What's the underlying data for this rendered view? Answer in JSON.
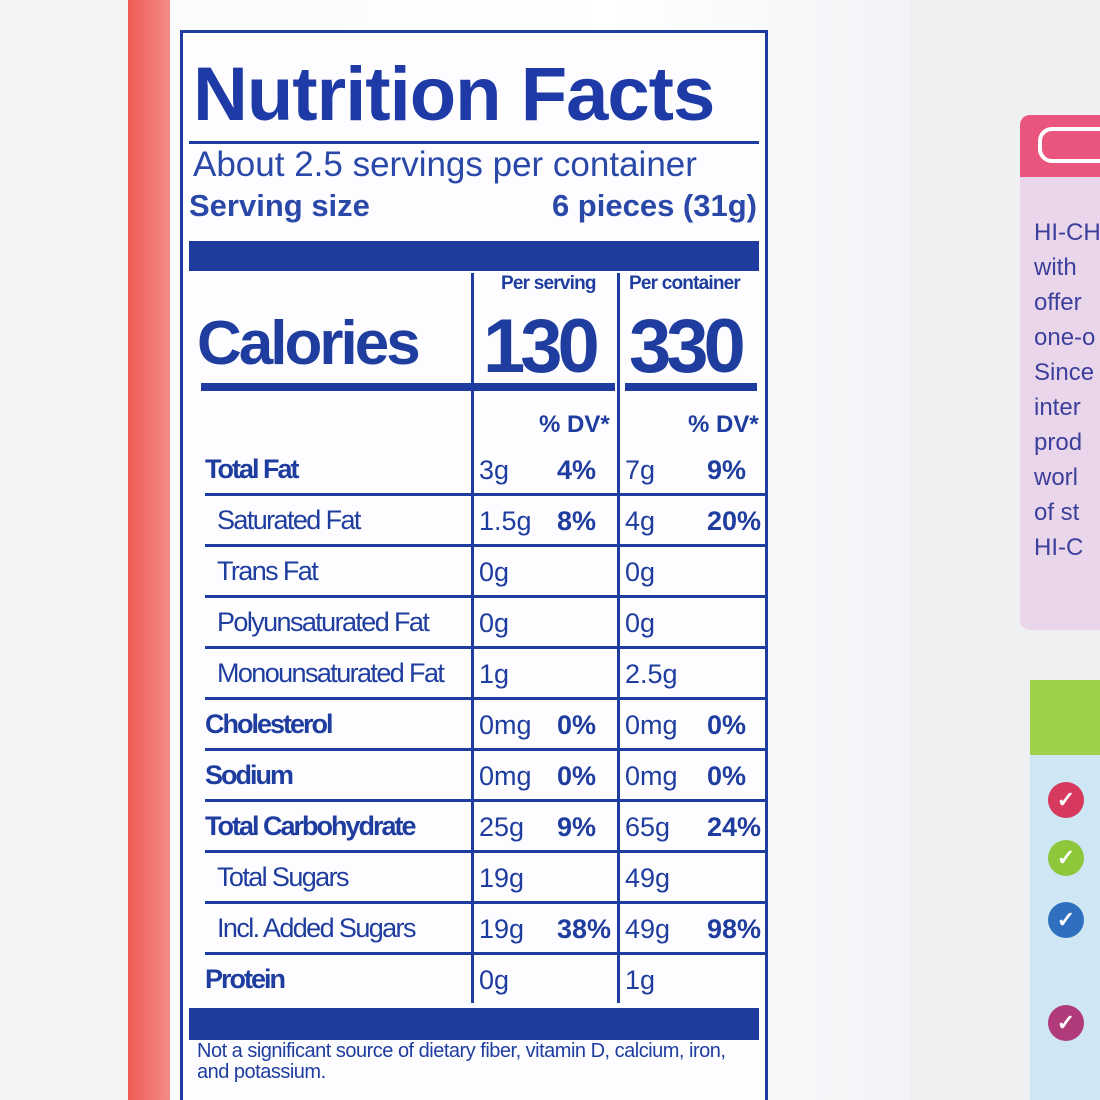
{
  "label": {
    "title": "Nutrition Facts",
    "servings": "About 2.5 servings per container",
    "serving_size_label": "Serving size",
    "serving_size_value": "6 pieces (31g)",
    "calories_label": "Calories",
    "per_serving_label": "Per serving",
    "per_container_label": "Per container",
    "calories_serving": "130",
    "calories_container": "330",
    "dv_header": "% DV*",
    "rows": [
      {
        "name": "Total Fat",
        "s": "3g",
        "sp": "4%",
        "c": "7g",
        "cp": "9%"
      },
      {
        "name": "Saturated Fat",
        "s": "1.5g",
        "sp": "8%",
        "c": "4g",
        "cp": "20%"
      },
      {
        "name": "Trans Fat",
        "s": "0g",
        "sp": "",
        "c": "0g",
        "cp": ""
      },
      {
        "name": "Polyunsaturated Fat",
        "s": "0g",
        "sp": "",
        "c": "0g",
        "cp": ""
      },
      {
        "name": "Monounsaturated Fat",
        "s": "1g",
        "sp": "",
        "c": "2.5g",
        "cp": ""
      },
      {
        "name": "Cholesterol",
        "s": "0mg",
        "sp": "0%",
        "c": "0mg",
        "cp": "0%"
      },
      {
        "name": "Sodium",
        "s": "0mg",
        "sp": "0%",
        "c": "0mg",
        "cp": "0%"
      },
      {
        "name": "Total Carbohydrate",
        "s": "25g",
        "sp": "9%",
        "c": "65g",
        "cp": "24%"
      },
      {
        "name": "Total Sugars",
        "s": "19g",
        "sp": "",
        "c": "49g",
        "cp": ""
      },
      {
        "name": "Incl. Added Sugars",
        "s": "19g",
        "sp": "38%",
        "c": "49g",
        "cp": "98%"
      },
      {
        "name": "Protein",
        "s": "0g",
        "sp": "",
        "c": "1g",
        "cp": ""
      }
    ],
    "footnote": "Not a significant source of dietary fiber, vitamin D, calcium, iron, and potassium."
  },
  "side_panel": {
    "text": "HI-CH\nwith\noffer\none-o\nSince\ninter\nprod\nworl\nof st\nHI-C"
  },
  "colors": {
    "ink": "#1f3d9e",
    "pink": "#e9557d",
    "green": "#9fd04a"
  }
}
